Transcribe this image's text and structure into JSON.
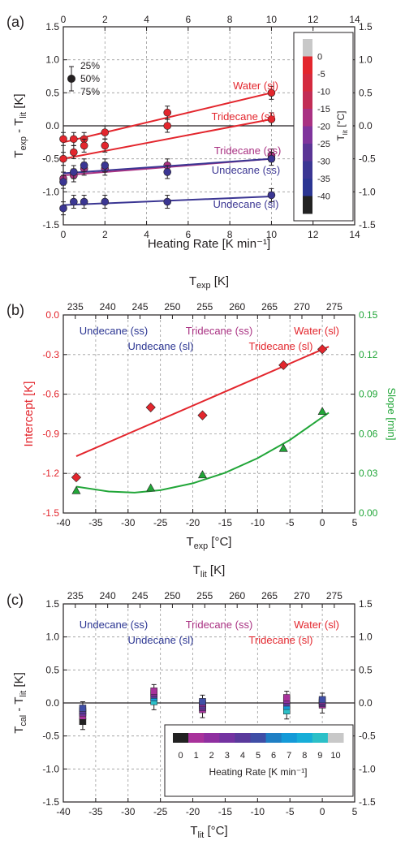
{
  "chart_data": [
    {
      "panel": "(a)",
      "type": "scatter",
      "xlabel": "Heating Rate [K min⁻¹]",
      "ylabel_main": "T",
      "ylabel_sub1": "exp",
      "ylabel_mid": " - T",
      "ylabel_sub2": "lit",
      "ylabel_unit": " [K]",
      "xlim": [
        0,
        14
      ],
      "ylim": [
        -1.5,
        1.5
      ],
      "xticks": [
        "0",
        "2",
        "4",
        "6",
        "8",
        "10",
        "12",
        "14"
      ],
      "yticks": [
        "-1.5",
        "-1.0",
        "-0.5",
        "0.0",
        "0.5",
        "1.0",
        "1.5"
      ],
      "percentile_legend": [
        "25%",
        "50%",
        "75%"
      ],
      "colorbar": {
        "title_main": "T",
        "title_sub": "lit",
        "title_unit": " [°C]",
        "ticks": [
          "0",
          "-5",
          "-10",
          "-15",
          "-20",
          "-25",
          "-30",
          "-35",
          "-40"
        ],
        "colors": [
          "#c8c8c8",
          "#e3262d",
          "#d42a3e",
          "#c22d55",
          "#a93182",
          "#7f349c",
          "#5a3595",
          "#3b3693",
          "#2b3592",
          "#222222"
        ]
      },
      "series": [
        {
          "name": "Water (sl)",
          "color": "#e3262d",
          "x": [
            0,
            0.5,
            1,
            2,
            5,
            10
          ],
          "y": [
            -0.2,
            -0.2,
            -0.2,
            -0.1,
            0.2,
            0.5
          ],
          "fit": [
            [
              0,
              -0.25
            ],
            [
              10,
              0.5
            ]
          ]
        },
        {
          "name": "Tridecane (sl)",
          "color": "#e3262d",
          "x": [
            0,
            0.5,
            1,
            2,
            5,
            10
          ],
          "y": [
            -0.5,
            -0.4,
            -0.3,
            -0.3,
            0.0,
            0.1
          ],
          "fit": [
            [
              0,
              -0.5
            ],
            [
              10,
              0.1
            ]
          ]
        },
        {
          "name": "Tridecane (ss)",
          "color": "#a93182",
          "x": [
            0,
            0.5,
            1,
            2,
            5,
            10
          ],
          "y": [
            -0.8,
            -0.75,
            -0.65,
            -0.65,
            -0.6,
            -0.45
          ],
          "fit": [
            [
              0,
              -0.75
            ],
            [
              10,
              -0.5
            ]
          ]
        },
        {
          "name": "Undecane (ss)",
          "color": "#3b3693",
          "x": [
            0,
            0.5,
            1,
            2,
            5,
            10
          ],
          "y": [
            -0.85,
            -0.7,
            -0.6,
            -0.6,
            -0.7,
            -0.5
          ],
          "fit": [
            [
              0,
              -0.72
            ],
            [
              10,
              -0.5
            ]
          ]
        },
        {
          "name": "Undecane (sl)",
          "color": "#3b3693",
          "x": [
            0,
            0.5,
            1,
            2,
            5,
            10
          ],
          "y": [
            -1.25,
            -1.15,
            -1.15,
            -1.15,
            -1.15,
            -1.05
          ],
          "fit": [
            [
              0,
              -1.2
            ],
            [
              10,
              -1.07
            ]
          ]
        }
      ]
    },
    {
      "panel": "(b)",
      "type": "scatter",
      "top_xlabel_main": "T",
      "top_xlabel_sub": "exp",
      "top_xlabel_unit": " [K]",
      "top_xticks": [
        "235",
        "240",
        "245",
        "250",
        "255",
        "260",
        "265",
        "270",
        "275"
      ],
      "xlabel_main": "T",
      "xlabel_sub": "exp",
      "xlabel_unit": " [°C]",
      "xlim": [
        -40,
        5
      ],
      "xticks": [
        "-40",
        "-35",
        "-30",
        "-25",
        "-20",
        "-15",
        "-10",
        "-5",
        "0",
        "5"
      ],
      "ylabel_left": "Intercept [K]",
      "ylim_left": [
        -1.5,
        0.0
      ],
      "yticks_left": [
        "-1.5",
        "-1.2",
        "-0.9",
        "-0.6",
        "-0.3",
        "0.0"
      ],
      "ylabel_right": "Slope [min]",
      "ylim_right": [
        0.0,
        0.15
      ],
      "yticks_right": [
        "0.00",
        "0.03",
        "0.06",
        "0.09",
        "0.12",
        "0.15"
      ],
      "labels": [
        {
          "text": "Undecane (ss)",
          "color": "#2b3592"
        },
        {
          "text": "Tridecane (ss)",
          "color": "#a93182"
        },
        {
          "text": "Water (sl)",
          "color": "#e3262d"
        },
        {
          "text": "Undecane (sl)",
          "color": "#2b3592"
        },
        {
          "text": "Tridecane (sl)",
          "color": "#e3262d"
        }
      ],
      "intercept": {
        "color": "#e3262d",
        "x": [
          -38,
          -26.5,
          -18.5,
          -6,
          0
        ],
        "y": [
          -1.23,
          -0.7,
          -0.76,
          -0.38,
          -0.26
        ],
        "fit": [
          [
            -38,
            -1.07
          ],
          [
            1,
            -0.24
          ]
        ]
      },
      "slope": {
        "color": "#21a638",
        "x": [
          -38,
          -26.5,
          -18.5,
          -6,
          0
        ],
        "y": [
          0.017,
          0.019,
          0.029,
          0.049,
          0.077
        ],
        "fit": [
          [
            -38,
            0.02
          ],
          [
            -33,
            0.0163
          ],
          [
            -29,
            0.0154
          ],
          [
            -25,
            0.0173
          ],
          [
            -20,
            0.0225
          ],
          [
            -15,
            0.0305
          ],
          [
            -10,
            0.0415
          ],
          [
            -5,
            0.0553
          ],
          [
            1,
            0.076
          ]
        ]
      }
    },
    {
      "panel": "(c)",
      "type": "scatter",
      "top_xlabel_main": "T",
      "top_xlabel_sub": "lit",
      "top_xlabel_unit": " [K]",
      "top_xticks": [
        "235",
        "240",
        "245",
        "250",
        "255",
        "260",
        "265",
        "270",
        "275"
      ],
      "xlabel_main": "T",
      "xlabel_sub": "lit",
      "xlabel_unit": " [°C]",
      "xlim": [
        -40,
        5
      ],
      "xticks": [
        "-40",
        "-35",
        "-30",
        "-25",
        "-20",
        "-15",
        "-10",
        "-5",
        "0",
        "5"
      ],
      "ylabel_main": "T",
      "ylabel_sub1": "cal",
      "ylabel_mid": " - T",
      "ylabel_sub2": "lit",
      "ylabel_unit": " [K]",
      "ylim": [
        -1.5,
        1.5
      ],
      "yticks": [
        "-1.5",
        "-1.0",
        "-0.5",
        "0.0",
        "0.5",
        "1.0",
        "1.5"
      ],
      "labels": [
        {
          "text": "Undecane (ss)",
          "color": "#2b3592"
        },
        {
          "text": "Tridecane (ss)",
          "color": "#a93182"
        },
        {
          "text": "Water (sl)",
          "color": "#e3262d"
        },
        {
          "text": "Undecane (sl)",
          "color": "#2b3592"
        },
        {
          "text": "Tridecane (sl)",
          "color": "#e3262d"
        }
      ],
      "colorbar": {
        "title": "Heating Rate [K min⁻¹]",
        "ticks": [
          "0",
          "1",
          "2",
          "3",
          "4",
          "5",
          "6",
          "7",
          "8",
          "9",
          "10"
        ],
        "colors": [
          "#222222",
          "#a8329b",
          "#8f2fa0",
          "#7433a1",
          "#5a3a9c",
          "#3f4ea6",
          "#1f7fc4",
          "#149ad8",
          "#17aed8",
          "#2cc0c8",
          "#c8c8c8"
        ]
      },
      "groups": [
        {
          "x": -37,
          "y": [
            -0.28,
            -0.2,
            -0.15,
            -0.12,
            -0.08
          ],
          "colors": [
            "#222222",
            "#a8329b",
            "#7433a1",
            "#5a3a9c",
            "#3f4ea6"
          ]
        },
        {
          "x": -26,
          "y": [
            0.02,
            0.08,
            0.12,
            0.15,
            0.18
          ],
          "colors": [
            "#2cc0c8",
            "#149ad8",
            "#5a3a9c",
            "#8f2fa0",
            "#a8329b"
          ]
        },
        {
          "x": -18.5,
          "y": [
            -0.1,
            -0.07,
            -0.04,
            -0.01,
            0.02
          ],
          "colors": [
            "#a8329b",
            "#7433a1",
            "#5a3a9c",
            "#8f2fa0",
            "#3f4ea6"
          ]
        },
        {
          "x": -5.5,
          "y": [
            -0.12,
            -0.05,
            0.0,
            0.04,
            0.08
          ],
          "colors": [
            "#2cc0c8",
            "#149ad8",
            "#5a3a9c",
            "#8f2fa0",
            "#a8329b"
          ]
        },
        {
          "x": 0,
          "y": [
            -0.03,
            -0.01,
            0.01,
            0.03,
            0.05
          ],
          "colors": [
            "#a8329b",
            "#7433a1",
            "#5a3a9c",
            "#8f2fa0",
            "#3f4ea6"
          ]
        }
      ]
    }
  ]
}
